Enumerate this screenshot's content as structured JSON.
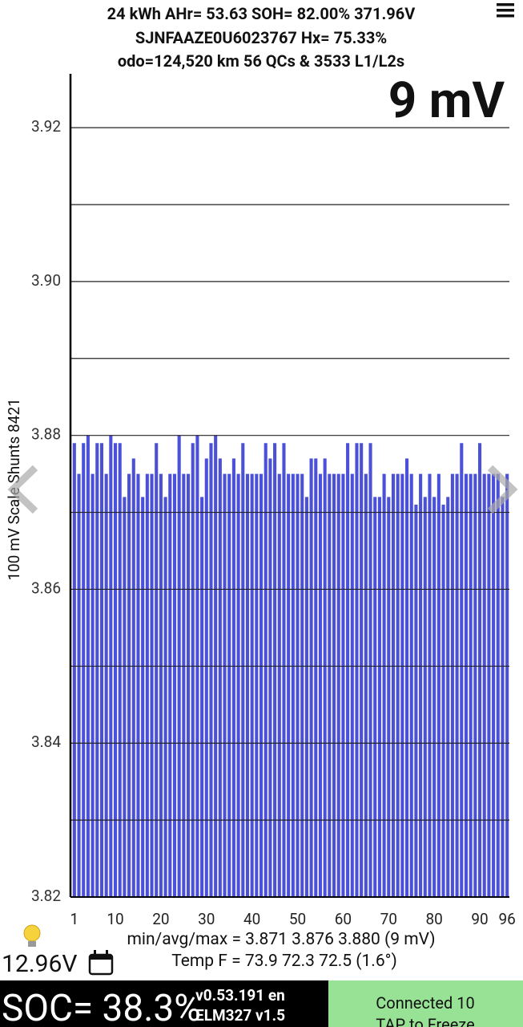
{
  "header": {
    "line1": "24 kWh  AHr= 53.63 SOH= 82.00% 371.96V",
    "line2": "SJNFAAZE0U6023767   Hx= 75.33%",
    "line3": "odo=124,520 km 56 QCs & 3533 L1/L2s"
  },
  "chart_data": {
    "type": "bar",
    "title": "9 mV",
    "y_label": "100 mV Scale  Shunts 8421",
    "categories": [
      "1",
      null,
      null,
      null,
      null,
      null,
      null,
      null,
      null,
      "10",
      null,
      null,
      null,
      null,
      null,
      null,
      null,
      null,
      null,
      "20",
      null,
      null,
      null,
      null,
      null,
      null,
      null,
      null,
      null,
      "30",
      null,
      null,
      null,
      null,
      null,
      null,
      null,
      null,
      null,
      "40",
      null,
      null,
      null,
      null,
      null,
      null,
      null,
      null,
      null,
      "50",
      null,
      null,
      null,
      null,
      null,
      null,
      null,
      null,
      null,
      "60",
      null,
      null,
      null,
      null,
      null,
      null,
      null,
      null,
      null,
      "70",
      null,
      null,
      null,
      null,
      null,
      null,
      null,
      null,
      null,
      "80",
      null,
      null,
      null,
      null,
      null,
      null,
      null,
      null,
      null,
      "90",
      null,
      null,
      null,
      null,
      null,
      "96"
    ],
    "values": [
      3.879,
      3.875,
      3.879,
      3.88,
      3.875,
      3.879,
      3.879,
      3.875,
      3.88,
      3.879,
      3.879,
      3.872,
      3.875,
      3.877,
      3.875,
      3.872,
      3.875,
      3.875,
      3.879,
      3.875,
      3.872,
      3.875,
      3.875,
      3.88,
      3.875,
      3.875,
      3.879,
      3.88,
      3.872,
      3.877,
      3.879,
      3.88,
      3.877,
      3.875,
      3.875,
      3.877,
      3.875,
      3.879,
      3.875,
      3.875,
      3.875,
      3.875,
      3.879,
      3.877,
      3.879,
      3.875,
      3.879,
      3.875,
      3.875,
      3.875,
      3.875,
      3.872,
      3.877,
      3.877,
      3.875,
      3.877,
      3.875,
      3.875,
      3.875,
      3.875,
      3.879,
      3.875,
      3.879,
      3.879,
      3.875,
      3.879,
      3.872,
      3.872,
      3.875,
      3.872,
      3.875,
      3.875,
      3.875,
      3.877,
      3.875,
      3.871,
      3.875,
      3.872,
      3.875,
      3.872,
      3.875,
      3.871,
      3.872,
      3.875,
      3.875,
      3.879,
      3.875,
      3.875,
      3.875,
      3.879,
      3.875,
      3.875,
      3.875,
      3.875,
      3.872,
      3.875
    ],
    "color": "#4b50d8",
    "ylim": [
      3.82,
      3.927
    ],
    "yticks": [
      3.82,
      3.84,
      3.86,
      3.88,
      {
        "value": 3.9,
        "label": "3.90"
      },
      3.92
    ],
    "minor_yticks": [
      3.83,
      3.85,
      3.87,
      3.89,
      3.91
    ],
    "grid": true
  },
  "stats": {
    "minmax": "min/avg/max = 3.871 3.876 3.880  (9 mV)",
    "temp": "Temp F = 73.9  72.3  72.5  (1.6°)"
  },
  "footer": {
    "voltage": "12.96V",
    "soc": "SOC= 38.3%",
    "version": "v0.53.191 en",
    "adapter": "ELM327 v1.5",
    "status": "Connected 10",
    "action": "TAP to Freeze"
  }
}
